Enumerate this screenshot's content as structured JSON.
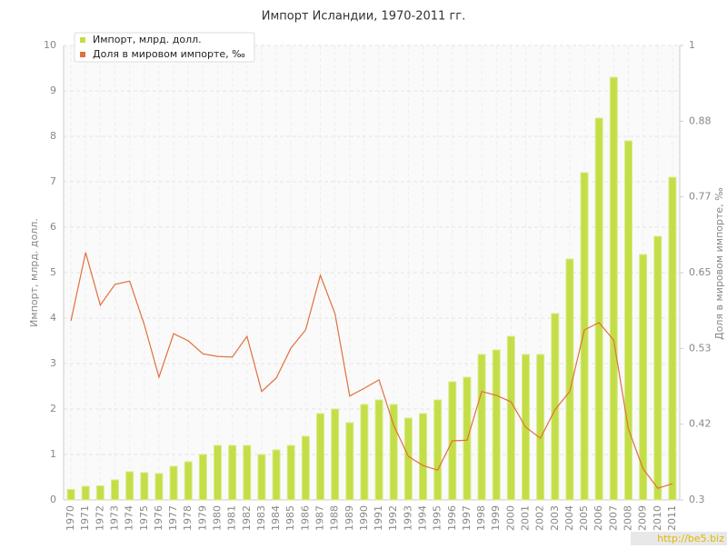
{
  "chart_data": {
    "type": "bar-line",
    "title": "Импорт Исландии, 1970-2011 гг.",
    "y_label": "Импорт, млрд. долл.",
    "y2_label": "Доля в мировом импорте, ‰",
    "watermark": "http://be5.biz",
    "categories": [
      "1970",
      "1971",
      "1972",
      "1973",
      "1974",
      "1975",
      "1976",
      "1977",
      "1978",
      "1979",
      "1980",
      "1981",
      "1982",
      "1983",
      "1984",
      "1985",
      "1986",
      "1987",
      "1988",
      "1989",
      "1990",
      "1991",
      "1992",
      "1993",
      "1994",
      "1995",
      "1996",
      "1997",
      "1998",
      "1999",
      "2000",
      "2001",
      "2002",
      "2003",
      "2004",
      "2005",
      "2006",
      "2007",
      "2008",
      "2009",
      "2010",
      "2011"
    ],
    "series": [
      {
        "name": "Импорт, млрд. долл.",
        "color": "#c3de47",
        "kind": "bar",
        "values": [
          0.23,
          0.3,
          0.31,
          0.44,
          0.62,
          0.6,
          0.58,
          0.74,
          0.84,
          1.0,
          1.2,
          1.2,
          1.2,
          1.0,
          1.1,
          1.2,
          1.4,
          1.9,
          2.0,
          1.7,
          2.1,
          2.2,
          2.1,
          1.8,
          1.9,
          2.2,
          2.6,
          2.7,
          3.2,
          3.3,
          3.6,
          3.2,
          3.2,
          4.1,
          5.3,
          7.2,
          8.4,
          9.3,
          7.9,
          5.4,
          5.8,
          7.1
        ]
      },
      {
        "name": "Доля в мировом импорте, ‰",
        "color": "#e0703e",
        "kind": "line",
        "axis": "y2",
        "values": [
          0.576,
          0.681,
          0.6,
          0.632,
          0.637,
          0.57,
          0.489,
          0.556,
          0.545,
          0.525,
          0.521,
          0.52,
          0.552,
          0.467,
          0.488,
          0.534,
          0.562,
          0.646,
          0.587,
          0.46,
          0.472,
          0.485,
          0.415,
          0.367,
          0.353,
          0.346,
          0.391,
          0.392,
          0.467,
          0.461,
          0.451,
          0.412,
          0.395,
          0.439,
          0.467,
          0.562,
          0.573,
          0.546,
          0.409,
          0.348,
          0.318,
          0.325
        ]
      }
    ],
    "ylim": [
      0,
      10
    ],
    "yticks": [
      0,
      1,
      2,
      3,
      4,
      5,
      6,
      7,
      8,
      9,
      10
    ],
    "y2lim": [
      0.3,
      1
    ],
    "y2ticks": [
      0.3,
      {
        "value": 0.4167,
        "label": "0.42"
      },
      {
        "value": 0.5333,
        "label": "0.53"
      },
      0.65,
      {
        "value": 0.7667,
        "label": "0.77"
      },
      {
        "value": 0.8833,
        "label": "0.88"
      },
      1
    ],
    "grid": true,
    "legend": "top-left"
  }
}
